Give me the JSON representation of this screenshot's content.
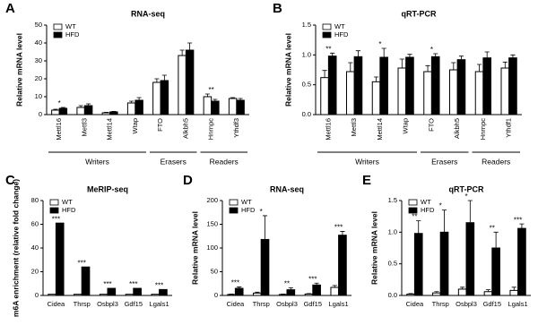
{
  "chart_data": [
    {
      "type": "bar",
      "panel": "A",
      "title": "RNA-seq",
      "y_label": "Relative mRNA level",
      "categories": [
        "Mettl16",
        "Mettl3",
        "Mettl14",
        "Wtap",
        "FTO",
        "Alkbh5",
        "Hnrnpc",
        "Ythdf3"
      ],
      "series": [
        {
          "name": "WT",
          "color": "#ffffff",
          "values": [
            2.5,
            4,
            1,
            6.5,
            18,
            33,
            10,
            9
          ],
          "errors": [
            0.5,
            1,
            0.3,
            1,
            2,
            3,
            1.5,
            0.5
          ]
        },
        {
          "name": "HFD",
          "color": "#000000",
          "values": [
            3.5,
            5,
            1.5,
            8,
            19,
            36,
            7.5,
            8
          ],
          "errors": [
            0.5,
            1,
            0.3,
            1.5,
            3,
            4,
            1,
            1
          ]
        }
      ],
      "annotations": [
        "*",
        null,
        null,
        null,
        null,
        null,
        "**",
        null
      ],
      "groups": [
        {
          "label": "Writers",
          "categories": [
            "Mettl16",
            "Mettl3",
            "Mettl14",
            "Wtap"
          ]
        },
        {
          "label": "Erasers",
          "categories": [
            "FTO",
            "Alkbh5"
          ]
        },
        {
          "label": "Readers",
          "categories": [
            "Hnrnpc",
            "Ythdf3"
          ]
        }
      ],
      "ylim": [
        0,
        50
      ],
      "yticks": [
        0,
        10,
        20,
        30,
        40,
        50
      ],
      "legend": "upper left"
    },
    {
      "type": "bar",
      "panel": "B",
      "title": "qRT-PCR",
      "y_label": "Relative mRNA level",
      "categories": [
        "Mettl16",
        "Mettl3",
        "Mettl14",
        "Wtap",
        "FTO",
        "Alkbh5",
        "Hnrnpc",
        "Ythdf1"
      ],
      "series": [
        {
          "name": "WT",
          "color": "#ffffff",
          "values": [
            0.62,
            0.72,
            0.55,
            0.78,
            0.72,
            0.75,
            0.72,
            0.78
          ],
          "errors": [
            0.12,
            0.15,
            0.08,
            0.15,
            0.1,
            0.12,
            0.12,
            0.1
          ]
        },
        {
          "name": "HFD",
          "color": "#000000",
          "values": [
            0.98,
            0.97,
            0.96,
            0.96,
            0.97,
            0.92,
            0.95,
            0.95
          ],
          "errors": [
            0.05,
            0.1,
            0.15,
            0.05,
            0.05,
            0.06,
            0.1,
            0.05
          ]
        }
      ],
      "annotations": [
        "**",
        null,
        "*",
        null,
        "*",
        null,
        null,
        null
      ],
      "groups": [
        {
          "label": "Writers",
          "categories": [
            "Mettl16",
            "Mettl3",
            "Mettl14",
            "Wtap"
          ]
        },
        {
          "label": "Erasers",
          "categories": [
            "FTO",
            "Alkbh5"
          ]
        },
        {
          "label": "Readers",
          "categories": [
            "Hnrnpc",
            "Ythdf1"
          ]
        }
      ],
      "ylim": [
        0,
        1.5
      ],
      "yticks": [
        {
          "value": 0,
          "label": "0.0"
        },
        0.5,
        {
          "value": 1,
          "label": "1.0"
        },
        1.5
      ],
      "legend": "upper left"
    },
    {
      "type": "bar",
      "panel": "C",
      "title": "MeRIP-seq",
      "y_label": "m6A enrichment (relative fold change)",
      "categories": [
        "Cidea",
        "Thrsp",
        "Osbpl3",
        "Gdf15",
        "Lgals1"
      ],
      "series": [
        {
          "name": "WT",
          "color": "#ffffff",
          "values": [
            1,
            1,
            1,
            1,
            1
          ]
        },
        {
          "name": "HFD",
          "color": "#000000",
          "values": [
            61,
            24,
            6,
            6,
            5
          ]
        }
      ],
      "annotations": [
        "***",
        "***",
        "***",
        "***",
        "***"
      ],
      "ylim": [
        0,
        80
      ],
      "yticks": [
        0,
        20,
        40,
        60,
        80
      ],
      "legend": "upper left"
    },
    {
      "type": "bar",
      "panel": "D",
      "title": "RNA-seq",
      "y_label": "Relative mRNA level",
      "categories": [
        "Cidea",
        "Thrsp",
        "Osbpl3",
        "Gdf15",
        "Lgals1"
      ],
      "series": [
        {
          "name": "WT",
          "color": "#ffffff",
          "values": [
            2,
            5,
            2,
            3,
            17
          ],
          "errors": [
            1,
            2,
            1,
            1,
            4
          ]
        },
        {
          "name": "HFD",
          "color": "#000000",
          "values": [
            15,
            118,
            12,
            22,
            127
          ],
          "errors": [
            3,
            50,
            4,
            4,
            8
          ]
        }
      ],
      "annotations": [
        "***",
        "*",
        "**",
        "***",
        "***"
      ],
      "ylim": [
        0,
        200
      ],
      "yticks": [
        0,
        50,
        100,
        150,
        200
      ],
      "legend": "upper left"
    },
    {
      "type": "bar",
      "panel": "E",
      "title": "qRT-PCR",
      "y_label": "Relative mRNA level",
      "categories": [
        "Cidea",
        "Thrsp",
        "Osbpl3",
        "Gdf15",
        "Lgals1"
      ],
      "series": [
        {
          "name": "WT",
          "color": "#ffffff",
          "values": [
            0.02,
            0.04,
            0.1,
            0.06,
            0.08
          ],
          "errors": [
            0.01,
            0.02,
            0.03,
            0.03,
            0.05
          ]
        },
        {
          "name": "HFD",
          "color": "#000000",
          "values": [
            0.98,
            1.0,
            1.15,
            0.75,
            1.06
          ],
          "errors": [
            0.2,
            0.35,
            0.35,
            0.25,
            0.07
          ]
        }
      ],
      "annotations": [
        "**",
        "*",
        "*",
        "**",
        "***"
      ],
      "ylim": [
        0,
        1.5
      ],
      "yticks": [
        {
          "value": 0,
          "label": "0.0"
        },
        0.5,
        {
          "value": 1,
          "label": "1.0"
        },
        1.5
      ],
      "legend": "upper left"
    }
  ]
}
